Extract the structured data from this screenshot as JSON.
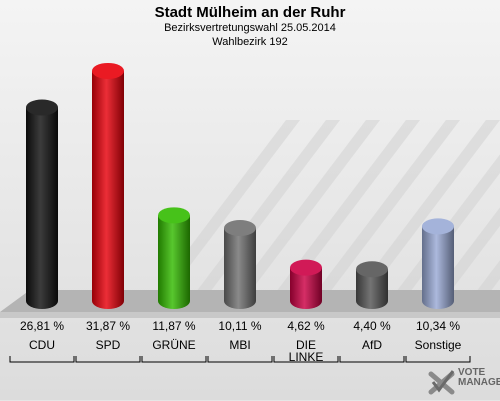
{
  "header": {
    "title": "Stadt Mülheim an der Ruhr",
    "subtitle": "Bezirksvertretungswahl 25.05.2014",
    "district": "Wahlbezirk 192"
  },
  "logo": {
    "line1": "VOTE",
    "line2": "MANAGER",
    "icon": "checkmark-x-icon"
  },
  "chart_data": {
    "type": "bar",
    "title": "Stadt Mülheim an der Ruhr",
    "categories": [
      "CDU",
      "SPD",
      "GRÜNE",
      "MBI",
      "DIE LINKE",
      "AfD",
      "Sonstige"
    ],
    "values": [
      26.81,
      31.87,
      11.87,
      10.11,
      4.62,
      4.4,
      10.34
    ],
    "value_labels": [
      "26,81 %",
      "31,87 %",
      "11,87 %",
      "10,11 %",
      "4,62 %",
      "4,40 %",
      "10,34 %"
    ],
    "colors": [
      "#111111",
      "#e8000b",
      "#33bb00",
      "#707070",
      "#cc0044",
      "#555555",
      "#9aaad6"
    ],
    "ylim": [
      0,
      32
    ],
    "grid": false,
    "legend": "none"
  }
}
